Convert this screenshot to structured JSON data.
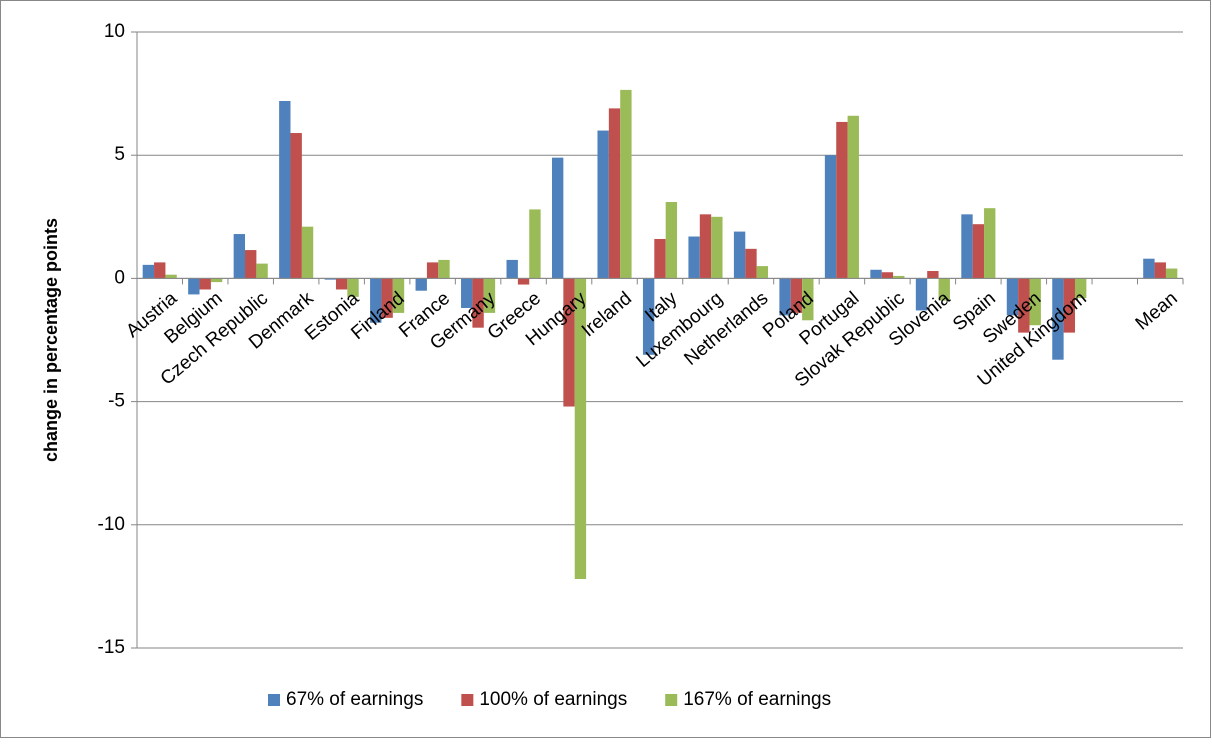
{
  "chart_data": {
    "type": "bar",
    "y_label": "change in percentage points",
    "categories": [
      "Austria",
      "Belgium",
      "Czech Republic",
      "Denmark",
      "Estonia",
      "Finland",
      "France",
      "Germany",
      "Greece",
      "Hungary",
      "Ireland",
      "Italy",
      "Luxembourg",
      "Netherlands",
      "Poland",
      "Portugal",
      "Slovak Republic",
      "Slovenia",
      "Spain",
      "Sweden",
      "United Kingdom",
      null,
      "Mean"
    ],
    "series": [
      {
        "name": "67% of earnings",
        "color": "#4f81bd",
        "values": [
          0.55,
          -0.65,
          1.8,
          7.2,
          -0.05,
          -1.8,
          -0.5,
          -1.2,
          0.75,
          4.9,
          6.0,
          -3.1,
          1.7,
          1.9,
          -1.5,
          5.0,
          0.35,
          -1.3,
          2.6,
          -1.5,
          -3.3,
          null,
          0.8
        ]
      },
      {
        "name": "100% of earnings",
        "color": "#c0504d",
        "values": [
          0.65,
          -0.45,
          1.15,
          5.9,
          -0.45,
          -1.6,
          0.65,
          -2.0,
          -0.25,
          -5.2,
          6.9,
          1.6,
          2.6,
          1.2,
          -1.4,
          6.35,
          0.25,
          0.3,
          2.2,
          -2.2,
          -2.2,
          null,
          0.65
        ]
      },
      {
        "name": "167% of earnings",
        "color": "#9bbb59",
        "values": [
          0.15,
          -0.15,
          0.6,
          2.1,
          -0.75,
          -1.4,
          0.75,
          -1.4,
          2.8,
          -12.2,
          7.65,
          3.1,
          2.5,
          0.5,
          -1.7,
          6.6,
          0.1,
          -0.9,
          2.85,
          -1.9,
          -0.8,
          null,
          0.4
        ]
      }
    ],
    "ylim": [
      -15,
      10
    ],
    "yticks": [
      -15,
      -10,
      -5,
      0,
      5,
      10
    ],
    "grid": true,
    "legend": "bottom"
  }
}
